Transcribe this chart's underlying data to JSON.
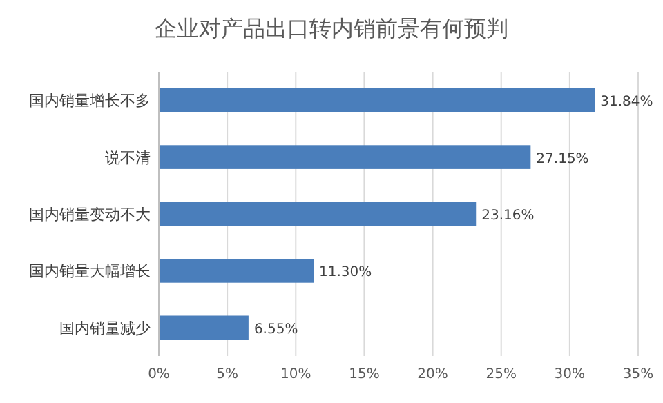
{
  "chart_data": {
    "type": "bar",
    "orientation": "horizontal",
    "title": "企业对产品出口转内销前景有何预判",
    "categories": [
      "国内销量增长不多",
      "说不清",
      "国内销量变动不大",
      "国内销量大幅增长",
      "国内销量减少"
    ],
    "values": [
      31.84,
      27.15,
      23.16,
      11.3,
      6.55
    ],
    "value_labels": [
      "31.84%",
      "27.15%",
      "23.16%",
      "11.30%",
      "6.55%"
    ],
    "color": "#4a7ebb",
    "xlim": [
      0,
      35
    ],
    "xticks": [
      {
        "value": 0,
        "label": "0%"
      },
      {
        "value": 5,
        "label": "5%"
      },
      {
        "value": 10,
        "label": "10%"
      },
      {
        "value": 15,
        "label": "15%"
      },
      {
        "value": 20,
        "label": "20%"
      },
      {
        "value": 25,
        "label": "25%"
      },
      {
        "value": 30,
        "label": "30%"
      },
      {
        "value": 35,
        "label": "35%"
      }
    ],
    "grid": "x"
  }
}
